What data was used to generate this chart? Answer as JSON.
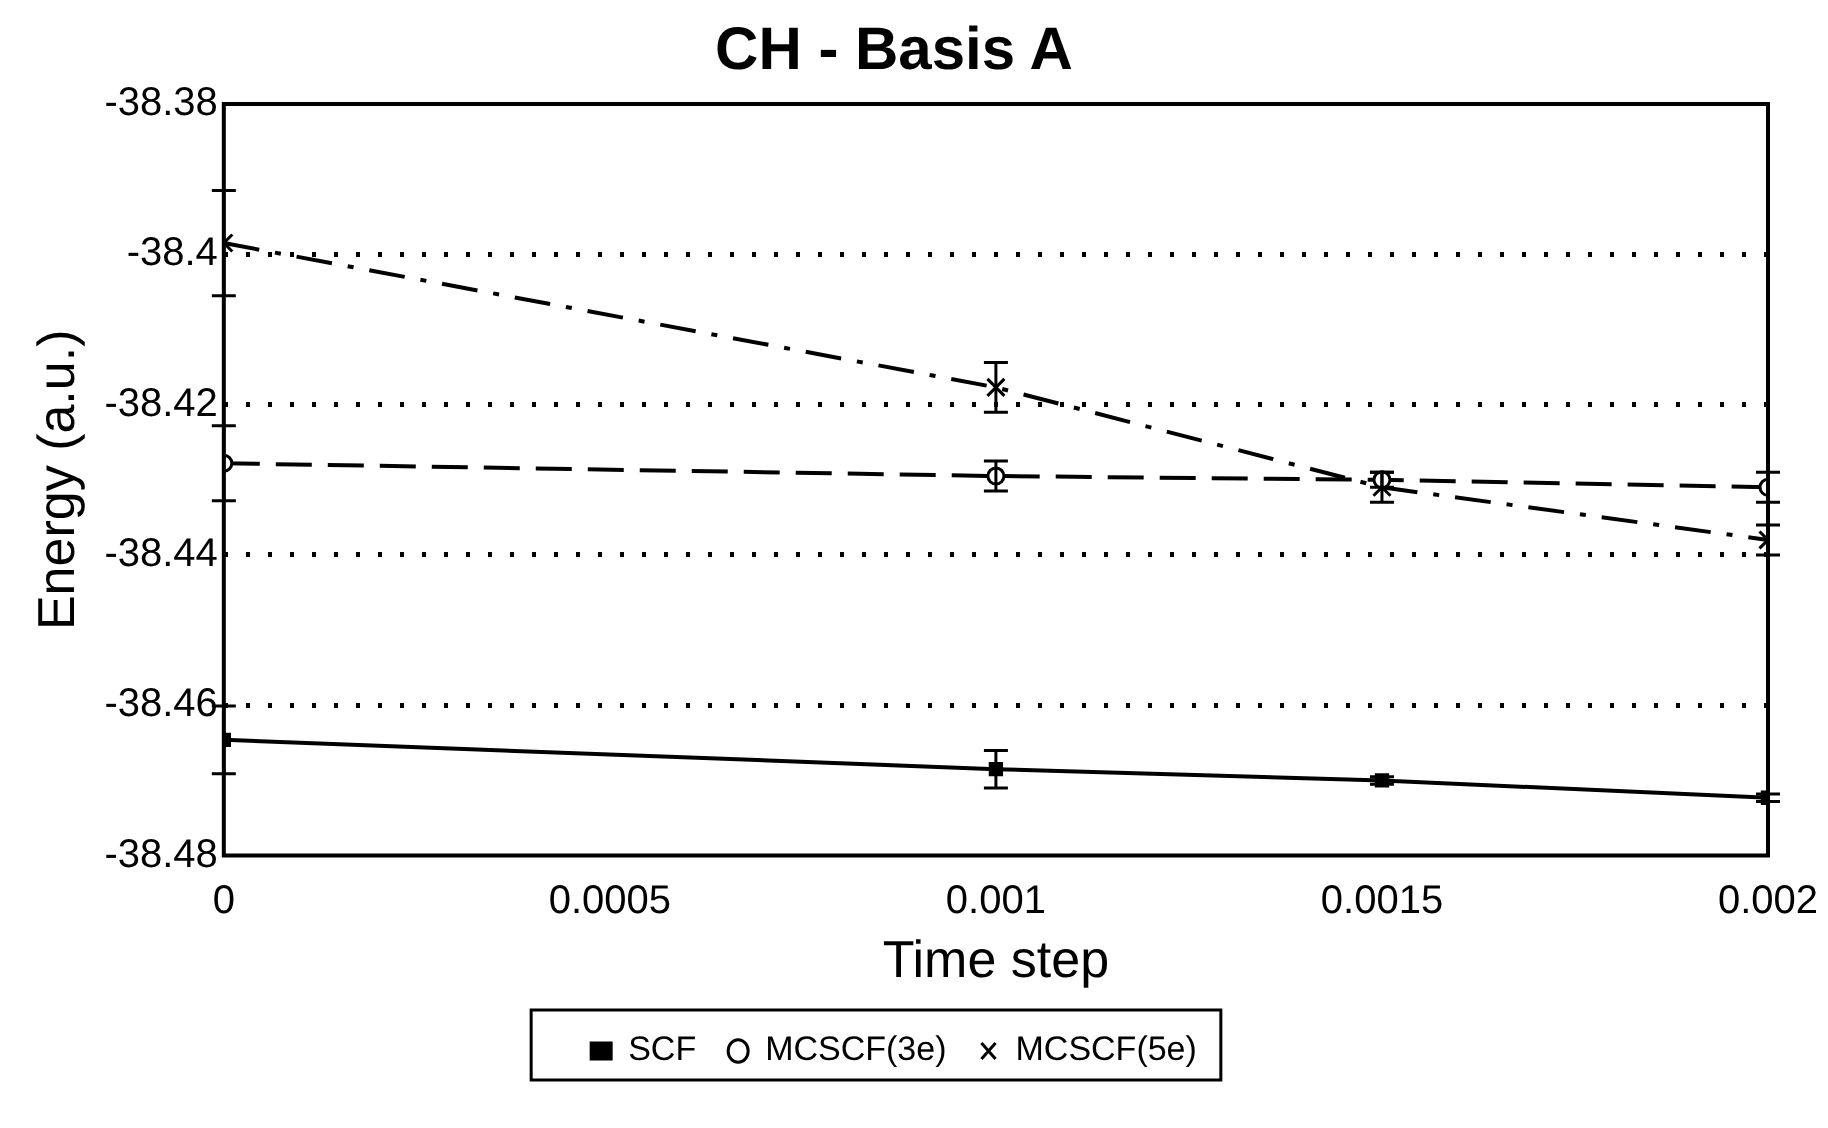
{
  "chart_data": {
    "type": "line",
    "title": "CH - Basis A",
    "xlabel": "Time step",
    "ylabel": "Energy (a.u.)",
    "xlim": [
      0,
      0.002
    ],
    "xticks": [
      0,
      0.0005,
      0.001,
      0.0015,
      0.002
    ],
    "ylim": [
      -38.48,
      -38.38
    ],
    "yticks": [
      -38.38,
      -38.4,
      -38.42,
      -38.44,
      -38.46,
      -38.48
    ],
    "grid": "y",
    "legend": "bottom",
    "series": [
      {
        "name": "SCF",
        "color": "#000000",
        "marker": "square",
        "line_style": "solid",
        "x": [
          0,
          0.001,
          0.0015,
          0.002
        ],
        "values": [
          -38.4646,
          -38.4685,
          -38.47,
          -38.4723
        ],
        "errors": [
          0.0045,
          0.0025,
          0.0005,
          0.0005
        ]
      },
      {
        "name": "MCSCF(3e)",
        "color": "#000000",
        "marker": "circle",
        "line_style": "dashed",
        "x": [
          0,
          0.001,
          0.0015,
          0.002
        ],
        "values": [
          -38.4278,
          -38.4295,
          -38.43,
          -38.431
        ],
        "errors": [
          0.005,
          0.002,
          0.001,
          0.002
        ]
      },
      {
        "name": "MCSCF(5e)",
        "color": "#000000",
        "marker": "cross",
        "line_style": "dashdot",
        "x": [
          0,
          0.001,
          0.0015,
          0.002
        ],
        "values": [
          -38.3985,
          -38.4177,
          -38.431,
          -38.438
        ],
        "errors": [
          0.007,
          0.0033,
          0.002,
          0.002
        ]
      }
    ]
  }
}
